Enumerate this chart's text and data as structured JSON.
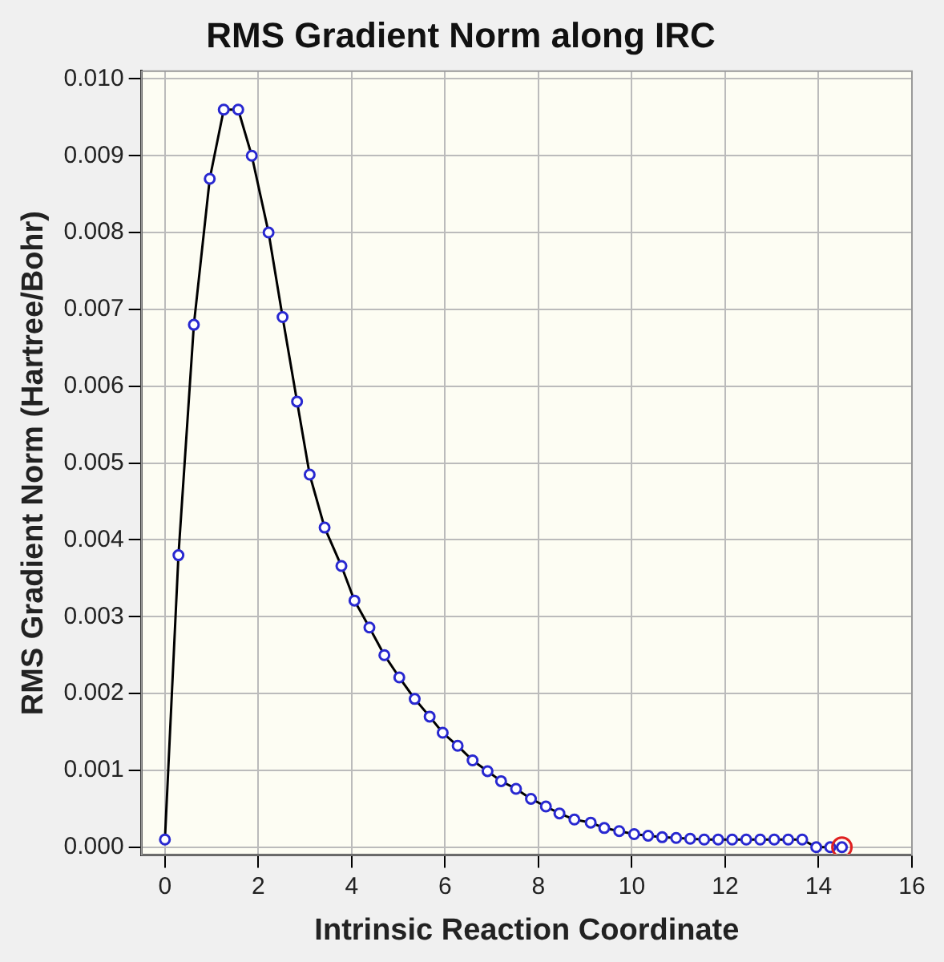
{
  "chart_data": {
    "type": "line",
    "title": "RMS Gradient Norm along IRC",
    "xlabel": "Intrinsic Reaction Coordinate",
    "ylabel": "RMS Gradient Norm (Hartree/Bohr)",
    "series": [
      {
        "color": "#2828d0",
        "x": [
          0,
          0.29,
          0.62,
          0.96,
          1.26,
          1.57,
          1.86,
          2.22,
          2.52,
          2.83,
          3.1,
          3.42,
          3.78,
          4.06,
          4.38,
          4.7,
          5.02,
          5.35,
          5.67,
          5.95,
          6.27,
          6.59,
          6.91,
          7.2,
          7.52,
          7.84,
          8.16,
          8.45,
          8.77,
          9.12,
          9.41,
          9.73,
          10.05,
          10.35,
          10.65,
          10.95,
          11.25,
          11.55,
          11.85,
          12.15,
          12.45,
          12.75,
          13.05,
          13.35,
          13.65,
          13.95,
          14.25,
          14.5
        ],
        "values": [
          0.0001,
          0.0038,
          0.0068,
          0.0087,
          0.0096,
          0.0096,
          0.009,
          0.008,
          0.0069,
          0.0058,
          0.00485,
          0.00416,
          0.00366,
          0.00321,
          0.00286,
          0.0025,
          0.00221,
          0.00193,
          0.0017,
          0.00149,
          0.00132,
          0.00113,
          0.00099,
          0.00086,
          0.00076,
          0.00063,
          0.00053,
          0.00044,
          0.00036,
          0.00032,
          0.00025,
          0.00021,
          0.00017,
          0.00015,
          0.00013,
          0.00012,
          0.00011,
          0.0001,
          0.0001,
          0.0001,
          0.0001,
          0.0001,
          0.0001,
          0.0001,
          0.0001,
          0,
          0,
          0
        ]
      },
      {
        "type": "scatter",
        "color": "#e02020",
        "x": [
          14.5
        ],
        "values": [
          0
        ]
      }
    ],
    "xlim": [
      -0.5,
      16
    ],
    "xticks": [
      0,
      2,
      4,
      6,
      8,
      10,
      12,
      14,
      16
    ],
    "ylim": [
      -0.0001,
      0.0101
    ],
    "yticks": [
      {
        "value": 0,
        "label": "0.000"
      },
      {
        "value": 0.001,
        "label": "0.001"
      },
      {
        "value": 0.002,
        "label": "0.002"
      },
      {
        "value": 0.003,
        "label": "0.003"
      },
      {
        "value": 0.004,
        "label": "0.004"
      },
      {
        "value": 0.005,
        "label": "0.005"
      },
      {
        "value": 0.006,
        "label": "0.006"
      },
      {
        "value": 0.007,
        "label": "0.007"
      },
      {
        "value": 0.008,
        "label": "0.008"
      },
      {
        "value": 0.009,
        "label": "0.009"
      },
      {
        "value": 0.01,
        "label": "0.010"
      }
    ],
    "grid": true,
    "marker": "circle",
    "line_style": "solid",
    "legend": false
  }
}
